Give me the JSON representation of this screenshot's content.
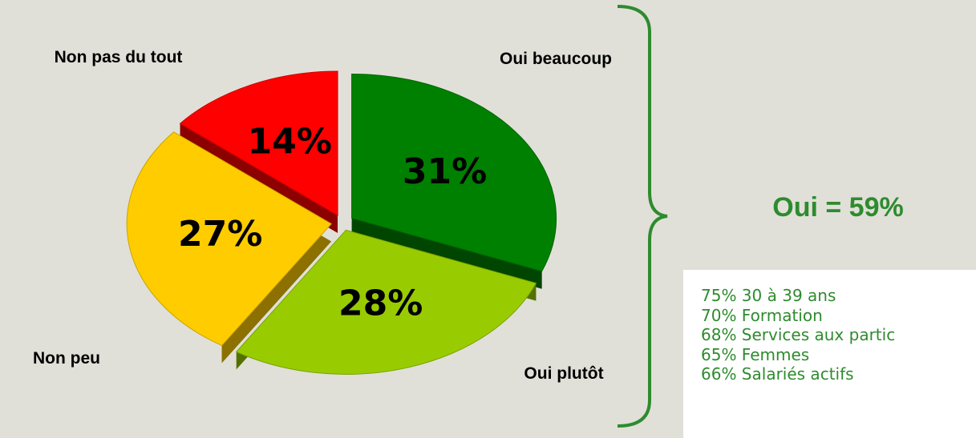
{
  "chart_data": {
    "type": "pie",
    "categories": [
      "Oui beaucoup",
      "Oui plutôt",
      "Non peu",
      "Non pas du tout"
    ],
    "values": [
      31,
      28,
      27,
      14
    ],
    "value_labels": [
      "31%",
      "28%",
      "27%",
      "14%"
    ],
    "colors": [
      "#008000",
      "#99cc00",
      "#ffcc00",
      "#ff0000"
    ],
    "annotations": [
      "Oui = 59%"
    ],
    "notes": [
      "75% 30 à 39 ans",
      "70% Formation",
      "68% Services aux partic",
      "65% Femmes",
      "66% Salariés actifs"
    ]
  }
}
